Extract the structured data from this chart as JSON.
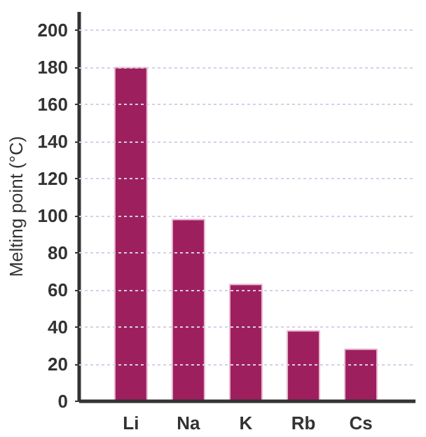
{
  "chart_data": {
    "type": "bar",
    "ylabel": "Melting point (°C)",
    "categories": [
      "Li",
      "Na",
      "K",
      "Rb",
      "Cs"
    ],
    "values": [
      180,
      98,
      63,
      38,
      28
    ],
    "color": "#9e1f5e",
    "ylim": [
      0,
      210
    ],
    "yticks": [
      0,
      20,
      40,
      60,
      80,
      100,
      120,
      140,
      160,
      180,
      200
    ],
    "grid": "y"
  }
}
